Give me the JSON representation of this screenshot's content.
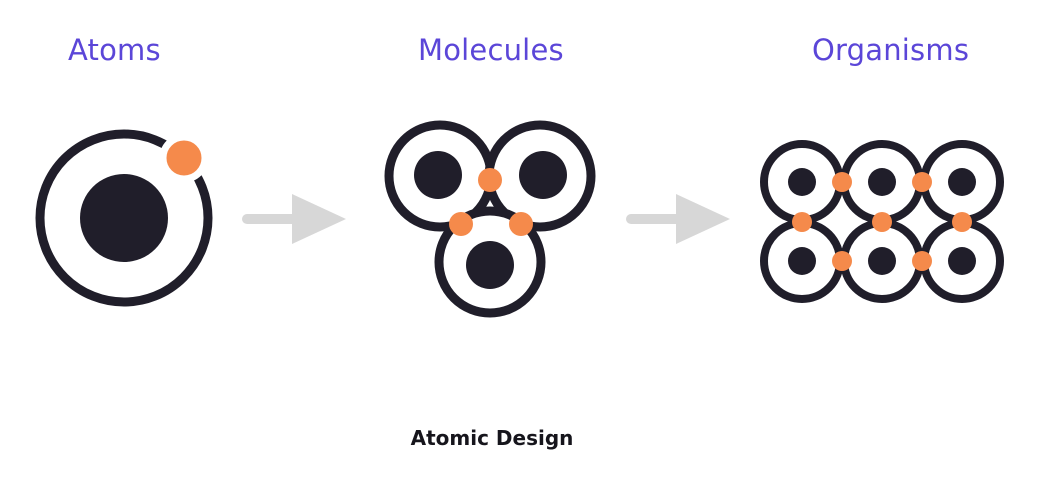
{
  "stages": [
    {
      "label": "Atoms"
    },
    {
      "label": "Molecules"
    },
    {
      "label": "Organisms"
    }
  ],
  "caption": "Atomic Design",
  "colors": {
    "heading": "#5b46d8",
    "ink": "#201e2a",
    "accent": "#f58a4b",
    "arrow": "#d7d7d7",
    "background": "#ffffff"
  },
  "arrows": [
    {
      "from": "Atoms",
      "to": "Molecules"
    },
    {
      "from": "Molecules",
      "to": "Organisms"
    }
  ]
}
